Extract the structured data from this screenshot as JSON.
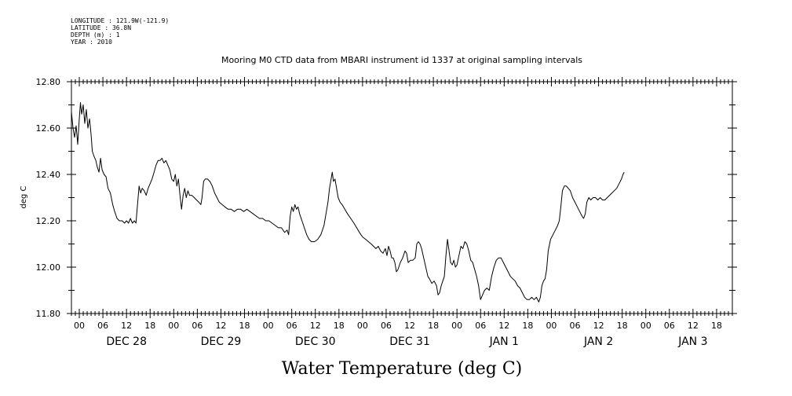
{
  "header": {
    "longitude": "LONGITUDE : 121.9W(-121.9)",
    "latitude": "LATITUDE : 36.8N",
    "depth": "DEPTH (m) : 1",
    "year": "YEAR : 2010"
  },
  "chart_data": {
    "type": "line",
    "title": "Mooring M0 CTD data from MBARI instrument id 1337 at original sampling intervals",
    "xlabel": "Water Temperature (deg C)",
    "ylabel": "deg C",
    "ylim": [
      11.8,
      12.8
    ],
    "yticks": [
      "12.80",
      "12.60",
      "12.40",
      "12.20",
      "12.00",
      "11.80"
    ],
    "ytick_values": [
      12.8,
      12.6,
      12.4,
      12.2,
      12.0,
      11.8
    ],
    "x_unit": "hours since Dec 28 00:00",
    "xlim": [
      -2,
      166
    ],
    "x_hour_labels": [
      "00",
      "06",
      "12",
      "18",
      "00",
      "06",
      "12",
      "18",
      "00",
      "06",
      "12",
      "18",
      "00",
      "06",
      "12",
      "18",
      "00",
      "06",
      "12",
      "18",
      "00",
      "06",
      "12",
      "18",
      "00",
      "06",
      "12",
      "18"
    ],
    "x_hour_values": [
      0,
      6,
      12,
      18,
      24,
      30,
      36,
      42,
      48,
      54,
      60,
      66,
      72,
      78,
      84,
      90,
      96,
      102,
      108,
      114,
      120,
      126,
      132,
      138,
      144,
      150,
      156,
      162
    ],
    "x_day_labels": [
      "DEC 28",
      "DEC 29",
      "DEC 30",
      "DEC 31",
      "JAN  1",
      "JAN  2",
      "JAN  3"
    ],
    "x_day_values": [
      12,
      36,
      60,
      84,
      108,
      132,
      156
    ],
    "series": [
      {
        "color": "#000000",
        "points": [
          [
            -2,
            12.67
          ],
          [
            -1.6,
            12.6
          ],
          [
            -1.2,
            12.56
          ],
          [
            -0.8,
            12.61
          ],
          [
            -0.4,
            12.53
          ],
          [
            0,
            12.64
          ],
          [
            0.3,
            12.71
          ],
          [
            0.6,
            12.66
          ],
          [
            1,
            12.7
          ],
          [
            1.4,
            12.62
          ],
          [
            1.8,
            12.68
          ],
          [
            2.2,
            12.6
          ],
          [
            2.6,
            12.64
          ],
          [
            3,
            12.57
          ],
          [
            3.3,
            12.5
          ],
          [
            3.7,
            12.48
          ],
          [
            4.2,
            12.46
          ],
          [
            4.6,
            12.43
          ],
          [
            5,
            12.41
          ],
          [
            5.4,
            12.47
          ],
          [
            5.8,
            12.42
          ],
          [
            6.3,
            12.4
          ],
          [
            6.8,
            12.39
          ],
          [
            7.3,
            12.34
          ],
          [
            7.9,
            12.32
          ],
          [
            8.5,
            12.27
          ],
          [
            9,
            12.24
          ],
          [
            9.6,
            12.21
          ],
          [
            10.2,
            12.2
          ],
          [
            10.9,
            12.2
          ],
          [
            11.5,
            12.19
          ],
          [
            12,
            12.2
          ],
          [
            12.5,
            12.19
          ],
          [
            13,
            12.21
          ],
          [
            13.5,
            12.19
          ],
          [
            14,
            12.2
          ],
          [
            14.4,
            12.19
          ],
          [
            14.8,
            12.27
          ],
          [
            15.2,
            12.35
          ],
          [
            15.6,
            12.32
          ],
          [
            16,
            12.34
          ],
          [
            16.5,
            12.33
          ],
          [
            17,
            12.31
          ],
          [
            17.5,
            12.34
          ],
          [
            18,
            12.36
          ],
          [
            18.5,
            12.38
          ],
          [
            19,
            12.41
          ],
          [
            19.5,
            12.44
          ],
          [
            20,
            12.46
          ],
          [
            20.5,
            12.46
          ],
          [
            21,
            12.47
          ],
          [
            21.5,
            12.45
          ],
          [
            22,
            12.46
          ],
          [
            22.5,
            12.44
          ],
          [
            23,
            12.42
          ],
          [
            23.5,
            12.38
          ],
          [
            24,
            12.37
          ],
          [
            24.4,
            12.4
          ],
          [
            24.8,
            12.35
          ],
          [
            25.2,
            12.38
          ],
          [
            25.6,
            12.31
          ],
          [
            26,
            12.25
          ],
          [
            26.4,
            12.31
          ],
          [
            26.8,
            12.34
          ],
          [
            27.2,
            12.3
          ],
          [
            27.6,
            12.33
          ],
          [
            28,
            12.31
          ],
          [
            28.6,
            12.31
          ],
          [
            29.2,
            12.3
          ],
          [
            29.8,
            12.29
          ],
          [
            30.4,
            12.28
          ],
          [
            30.9,
            12.27
          ],
          [
            31.2,
            12.3
          ],
          [
            31.6,
            12.37
          ],
          [
            32,
            12.38
          ],
          [
            32.6,
            12.38
          ],
          [
            33.2,
            12.37
          ],
          [
            33.8,
            12.35
          ],
          [
            34.4,
            12.32
          ],
          [
            35,
            12.3
          ],
          [
            35.6,
            12.28
          ],
          [
            36.3,
            12.27
          ],
          [
            37,
            12.26
          ],
          [
            37.8,
            12.25
          ],
          [
            38.6,
            12.25
          ],
          [
            39.4,
            12.24
          ],
          [
            40.2,
            12.25
          ],
          [
            41,
            12.25
          ],
          [
            41.8,
            12.24
          ],
          [
            42.6,
            12.25
          ],
          [
            43.4,
            12.24
          ],
          [
            44.2,
            12.23
          ],
          [
            45,
            12.22
          ],
          [
            45.8,
            12.21
          ],
          [
            46.6,
            12.21
          ],
          [
            47.4,
            12.2
          ],
          [
            48.2,
            12.2
          ],
          [
            49,
            12.19
          ],
          [
            49.8,
            12.18
          ],
          [
            50.6,
            12.17
          ],
          [
            51.4,
            12.17
          ],
          [
            52.2,
            12.15
          ],
          [
            52.8,
            12.16
          ],
          [
            53.2,
            12.14
          ],
          [
            53.6,
            12.22
          ],
          [
            54,
            12.26
          ],
          [
            54.4,
            12.24
          ],
          [
            54.8,
            12.27
          ],
          [
            55.2,
            12.25
          ],
          [
            55.6,
            12.26
          ],
          [
            56,
            12.23
          ],
          [
            56.6,
            12.2
          ],
          [
            57.2,
            12.17
          ],
          [
            57.8,
            12.14
          ],
          [
            58.4,
            12.12
          ],
          [
            59,
            12.11
          ],
          [
            59.8,
            12.11
          ],
          [
            60.6,
            12.12
          ],
          [
            61.4,
            12.14
          ],
          [
            62.2,
            12.18
          ],
          [
            62.8,
            12.24
          ],
          [
            63.2,
            12.28
          ],
          [
            63.6,
            12.34
          ],
          [
            64,
            12.38
          ],
          [
            64.3,
            12.41
          ],
          [
            64.6,
            12.37
          ],
          [
            65,
            12.38
          ],
          [
            65.4,
            12.34
          ],
          [
            65.8,
            12.3
          ],
          [
            66.3,
            12.28
          ],
          [
            66.8,
            12.27
          ],
          [
            67.5,
            12.25
          ],
          [
            68.2,
            12.23
          ],
          [
            69,
            12.21
          ],
          [
            69.8,
            12.19
          ],
          [
            70.5,
            12.17
          ],
          [
            71.2,
            12.15
          ],
          [
            72,
            12.13
          ],
          [
            72.8,
            12.12
          ],
          [
            73.5,
            12.11
          ],
          [
            74.2,
            12.1
          ],
          [
            74.8,
            12.09
          ],
          [
            75.4,
            12.08
          ],
          [
            76,
            12.09
          ],
          [
            76.6,
            12.07
          ],
          [
            77.2,
            12.06
          ],
          [
            77.8,
            12.08
          ],
          [
            78.2,
            12.05
          ],
          [
            78.6,
            12.09
          ],
          [
            79,
            12.07
          ],
          [
            79.4,
            12.04
          ],
          [
            79.8,
            12.04
          ],
          [
            80.2,
            12.02
          ],
          [
            80.6,
            11.98
          ],
          [
            81,
            11.99
          ],
          [
            81.6,
            12.02
          ],
          [
            82.2,
            12.04
          ],
          [
            82.8,
            12.07
          ],
          [
            83.2,
            12.06
          ],
          [
            83.6,
            12.02
          ],
          [
            84.2,
            12.03
          ],
          [
            84.8,
            12.03
          ],
          [
            85.4,
            12.04
          ],
          [
            85.8,
            12.1
          ],
          [
            86.2,
            12.11
          ],
          [
            86.6,
            12.1
          ],
          [
            87,
            12.08
          ],
          [
            87.4,
            12.05
          ],
          [
            87.8,
            12.02
          ],
          [
            88.2,
            11.99
          ],
          [
            88.6,
            11.96
          ],
          [
            89,
            11.95
          ],
          [
            89.6,
            11.93
          ],
          [
            90.2,
            11.94
          ],
          [
            90.8,
            11.92
          ],
          [
            91.2,
            11.88
          ],
          [
            91.6,
            11.89
          ],
          [
            92,
            11.92
          ],
          [
            92.4,
            11.94
          ],
          [
            92.8,
            11.96
          ],
          [
            93.2,
            12.05
          ],
          [
            93.6,
            12.12
          ],
          [
            94,
            12.07
          ],
          [
            94.4,
            12.02
          ],
          [
            94.8,
            12.01
          ],
          [
            95.2,
            12.03
          ],
          [
            95.6,
            12.0
          ],
          [
            96,
            12.01
          ],
          [
            96.5,
            12.05
          ],
          [
            97,
            12.09
          ],
          [
            97.5,
            12.08
          ],
          [
            98,
            12.11
          ],
          [
            98.5,
            12.1
          ],
          [
            99,
            12.07
          ],
          [
            99.5,
            12.03
          ],
          [
            100,
            12.02
          ],
          [
            100.5,
            11.99
          ],
          [
            101,
            11.96
          ],
          [
            101.5,
            11.92
          ],
          [
            102,
            11.86
          ],
          [
            102.5,
            11.88
          ],
          [
            103,
            11.9
          ],
          [
            103.6,
            11.91
          ],
          [
            104.2,
            11.9
          ],
          [
            104.8,
            11.96
          ],
          [
            105.4,
            12.0
          ],
          [
            106,
            12.03
          ],
          [
            106.6,
            12.04
          ],
          [
            107.2,
            12.04
          ],
          [
            107.8,
            12.02
          ],
          [
            108.4,
            12.0
          ],
          [
            109,
            11.98
          ],
          [
            109.6,
            11.96
          ],
          [
            110.2,
            11.95
          ],
          [
            110.8,
            11.94
          ],
          [
            111.4,
            11.92
          ],
          [
            112,
            11.91
          ],
          [
            112.6,
            11.89
          ],
          [
            113.2,
            11.87
          ],
          [
            113.8,
            11.86
          ],
          [
            114.4,
            11.86
          ],
          [
            115,
            11.87
          ],
          [
            115.6,
            11.86
          ],
          [
            116.2,
            11.87
          ],
          [
            116.8,
            11.85
          ],
          [
            117.2,
            11.87
          ],
          [
            117.6,
            11.92
          ],
          [
            118,
            11.94
          ],
          [
            118.4,
            11.95
          ],
          [
            118.8,
            11.99
          ],
          [
            119.2,
            12.07
          ],
          [
            119.8,
            12.12
          ],
          [
            120.4,
            12.14
          ],
          [
            121,
            12.16
          ],
          [
            121.6,
            12.18
          ],
          [
            122,
            12.2
          ],
          [
            122.4,
            12.26
          ],
          [
            122.8,
            12.33
          ],
          [
            123.3,
            12.35
          ],
          [
            123.8,
            12.35
          ],
          [
            124.3,
            12.34
          ],
          [
            124.8,
            12.33
          ],
          [
            125.4,
            12.3
          ],
          [
            126,
            12.28
          ],
          [
            126.6,
            12.26
          ],
          [
            127.2,
            12.24
          ],
          [
            127.8,
            12.22
          ],
          [
            128.2,
            12.21
          ],
          [
            128.6,
            12.23
          ],
          [
            129,
            12.28
          ],
          [
            129.5,
            12.3
          ],
          [
            130,
            12.29
          ],
          [
            130.6,
            12.3
          ],
          [
            131.2,
            12.3
          ],
          [
            131.8,
            12.29
          ],
          [
            132.4,
            12.3
          ],
          [
            133,
            12.29
          ],
          [
            133.6,
            12.29
          ],
          [
            134.2,
            12.3
          ],
          [
            134.8,
            12.31
          ],
          [
            135.4,
            12.32
          ],
          [
            136,
            12.33
          ],
          [
            136.6,
            12.34
          ],
          [
            137.2,
            12.36
          ],
          [
            137.8,
            12.38
          ],
          [
            138.2,
            12.4
          ],
          [
            138.5,
            12.41
          ]
        ]
      }
    ]
  }
}
